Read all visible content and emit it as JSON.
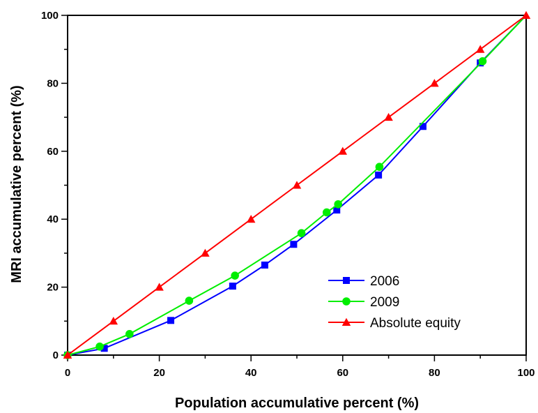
{
  "chart_data": {
    "type": "line",
    "title": "",
    "xlabel": "Population accumulative percent (%)",
    "ylabel": "MRI accumulative percent (%)",
    "xlim": [
      0,
      100
    ],
    "ylim": [
      0,
      100
    ],
    "xticks": [
      0,
      20,
      40,
      60,
      80,
      100
    ],
    "yticks": [
      0,
      20,
      40,
      60,
      80,
      100
    ],
    "x_tick_labels": [
      "0",
      "20",
      "40",
      "60",
      "80",
      "100"
    ],
    "y_tick_labels": [
      "0",
      "20",
      "40",
      "60",
      "80",
      "100"
    ],
    "grid": false,
    "legend_position": "bottom-right",
    "series": [
      {
        "name": "2006",
        "color": "#0000ff",
        "marker": "square",
        "points": [
          [
            0,
            0
          ],
          [
            8,
            2
          ],
          [
            22.5,
            10.2
          ],
          [
            36,
            20.3
          ],
          [
            43,
            26.5
          ],
          [
            49.3,
            32.6
          ],
          [
            58.7,
            42.7
          ],
          [
            67.8,
            53
          ],
          [
            77.5,
            67.3
          ],
          [
            90,
            86
          ],
          [
            100,
            100
          ]
        ]
      },
      {
        "name": "2009",
        "color": "#00ee00",
        "marker": "circle",
        "points": [
          [
            0,
            0
          ],
          [
            7,
            2.5
          ],
          [
            13.5,
            6.2
          ],
          [
            26.5,
            16
          ],
          [
            36.5,
            23.4
          ],
          [
            51,
            35.9
          ],
          [
            56.5,
            42
          ],
          [
            59,
            44.4
          ],
          [
            68,
            55.4
          ],
          [
            90.5,
            86.5
          ],
          [
            100,
            100
          ]
        ]
      },
      {
        "name": "Absolute equity",
        "color": "#ff0000",
        "marker": "triangle",
        "points": [
          [
            0,
            0
          ],
          [
            10,
            10
          ],
          [
            20,
            20
          ],
          [
            30,
            30
          ],
          [
            40,
            40
          ],
          [
            50,
            50
          ],
          [
            60,
            60
          ],
          [
            70,
            70
          ],
          [
            80,
            80
          ],
          [
            90,
            90
          ],
          [
            100,
            100
          ]
        ]
      }
    ]
  }
}
